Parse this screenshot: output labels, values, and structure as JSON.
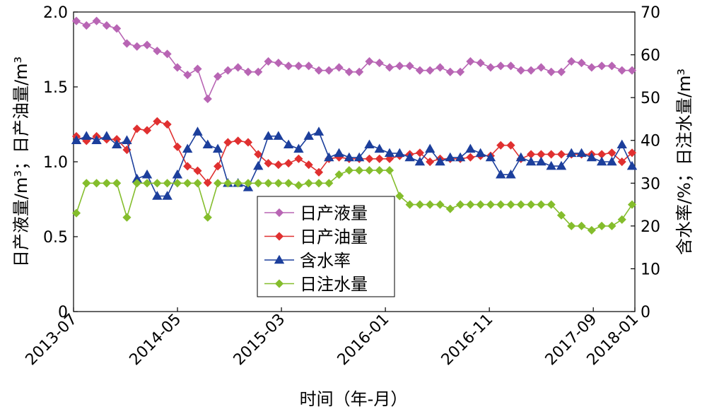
{
  "chart_data": {
    "type": "line",
    "xlabel": "时间（年-月）",
    "ylabel_left": "日产液量/m³；日产油量/m³",
    "ylabel_right": "含水率/%；日注水量/m³",
    "x_tick_labels": [
      "2013-07",
      "2014-05",
      "2015-03",
      "2016-01",
      "2016-11",
      "2017-09",
      "2018-01"
    ],
    "left_axis": {
      "ylim": [
        0,
        2.0
      ],
      "ticks": [
        "0",
        "0.5",
        "1.0",
        "1.5",
        "2.0"
      ]
    },
    "right_axis": {
      "ylim": [
        0,
        70
      ],
      "ticks": [
        "0",
        "10",
        "20",
        "30",
        "40",
        "50",
        "60",
        "70"
      ]
    },
    "grid": false,
    "legend_position": "lower-center",
    "x_start": "2013-07",
    "x_end": "2018-01",
    "series": [
      {
        "name": "日产液量",
        "axis": "left",
        "color": "#b865b4",
        "marker": "diamond",
        "values": [
          1.94,
          1.91,
          1.94,
          1.91,
          1.89,
          1.79,
          1.77,
          1.78,
          1.74,
          1.72,
          1.63,
          1.58,
          1.62,
          1.42,
          1.57,
          1.61,
          1.63,
          1.6,
          1.6,
          1.67,
          1.66,
          1.64,
          1.64,
          1.64,
          1.61,
          1.61,
          1.63,
          1.6,
          1.6,
          1.67,
          1.66,
          1.63,
          1.64,
          1.64,
          1.61,
          1.61,
          1.63,
          1.6,
          1.6,
          1.67,
          1.66,
          1.63,
          1.64,
          1.64,
          1.61,
          1.61,
          1.63,
          1.6,
          1.6,
          1.67,
          1.66,
          1.63,
          1.64,
          1.64,
          1.61,
          1.61
        ]
      },
      {
        "name": "日产油量",
        "axis": "left",
        "color": "#e03030",
        "marker": "diamond",
        "values": [
          1.17,
          1.14,
          1.17,
          1.15,
          1.15,
          1.08,
          1.22,
          1.21,
          1.27,
          1.25,
          1.1,
          0.97,
          0.94,
          0.86,
          0.97,
          1.13,
          1.14,
          1.13,
          1.05,
          0.99,
          0.98,
          0.99,
          1.02,
          0.98,
          0.93,
          1.02,
          1.03,
          1.02,
          1.02,
          1.02,
          1.02,
          1.02,
          1.04,
          1.05,
          1.06,
          1.0,
          1.02,
          1.02,
          1.02,
          1.03,
          1.04,
          1.04,
          1.11,
          1.11,
          1.02,
          1.05,
          1.05,
          1.05,
          1.05,
          1.05,
          1.05,
          1.05,
          1.05,
          1.06,
          1.0,
          1.06
        ]
      },
      {
        "name": "含水率",
        "axis": "right",
        "color": "#1c3f9c",
        "marker": "triangle",
        "values": [
          40,
          41,
          40,
          41,
          39,
          40,
          31,
          32,
          27,
          27,
          32,
          38,
          42,
          39,
          38,
          30,
          30,
          29,
          34,
          41,
          41,
          39,
          38,
          41,
          42,
          36,
          37,
          36,
          36,
          39,
          38,
          37,
          37,
          36,
          35,
          38,
          35,
          36,
          36,
          38,
          37,
          36,
          32,
          32,
          36,
          35,
          35,
          34,
          34,
          37,
          37,
          36,
          35,
          35,
          39,
          34
        ]
      },
      {
        "name": "日注水量",
        "axis": "right",
        "color": "#84bd2c",
        "marker": "diamond",
        "values": [
          23,
          30,
          30,
          30,
          30,
          22,
          30,
          30,
          30,
          30,
          30,
          30,
          30,
          22,
          30,
          30,
          30,
          30,
          30,
          30,
          30,
          30,
          29.5,
          30,
          30,
          30,
          32,
          33,
          33,
          33,
          33,
          33,
          27,
          25,
          25,
          25,
          25,
          24,
          25,
          25,
          25,
          25,
          25,
          25,
          25,
          25,
          25,
          25,
          22.5,
          20,
          20,
          19,
          20,
          20,
          21.5,
          25
        ]
      }
    ]
  }
}
